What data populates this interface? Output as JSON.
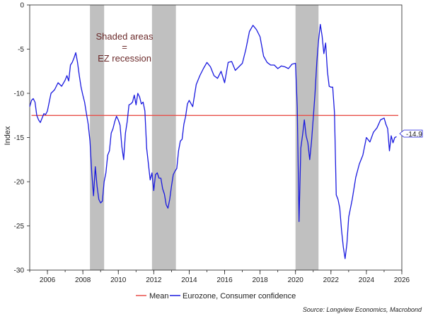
{
  "chart_data": {
    "type": "line",
    "ylabel": "Index",
    "ylim": [
      -30,
      0
    ],
    "yticks": [
      0,
      -5,
      -10,
      -15,
      -20,
      -25,
      -30
    ],
    "xlim": [
      2005.0,
      2026.0
    ],
    "xticks": [
      2006,
      2008,
      2010,
      2012,
      2014,
      2016,
      2018,
      2020,
      2022,
      2024,
      2026
    ],
    "grid": false,
    "legend_position": "bottom",
    "annotation_lines": [
      "Shaded areas",
      "=",
      "EZ recession"
    ],
    "recessions": [
      [
        2008.4,
        2009.2
      ],
      [
        2011.9,
        2013.25
      ],
      [
        2020.0,
        2021.3
      ]
    ],
    "last_value_label": "-14.9",
    "source": "Source: Longview Economics, Macrobond",
    "series": [
      {
        "name": "Mean",
        "color": "#e8504a",
        "x": [
          2005.1,
          2025.8
        ],
        "values": [
          -12.5,
          -12.5
        ]
      },
      {
        "name": "Eurozone, Consumer confidence",
        "color": "#1a1adf",
        "x": [
          2005.0,
          2005.1,
          2005.2,
          2005.3,
          2005.4,
          2005.5,
          2005.6,
          2005.7,
          2005.8,
          2005.9,
          2006.0,
          2006.2,
          2006.4,
          2006.6,
          2006.8,
          2007.0,
          2007.1,
          2007.2,
          2007.3,
          2007.4,
          2007.5,
          2007.6,
          2007.7,
          2007.8,
          2007.9,
          2008.0,
          2008.1,
          2008.2,
          2008.3,
          2008.4,
          2008.5,
          2008.6,
          2008.7,
          2008.8,
          2008.9,
          2009.0,
          2009.1,
          2009.2,
          2009.3,
          2009.4,
          2009.5,
          2009.6,
          2009.7,
          2009.8,
          2009.9,
          2010.0,
          2010.1,
          2010.2,
          2010.3,
          2010.4,
          2010.5,
          2010.6,
          2010.7,
          2010.8,
          2010.9,
          2011.0,
          2011.1,
          2011.2,
          2011.3,
          2011.4,
          2011.5,
          2011.6,
          2011.7,
          2011.8,
          2011.9,
          2012.0,
          2012.1,
          2012.2,
          2012.3,
          2012.4,
          2012.5,
          2012.6,
          2012.7,
          2012.8,
          2012.9,
          2013.0,
          2013.1,
          2013.2,
          2013.3,
          2013.4,
          2013.5,
          2013.6,
          2013.7,
          2013.8,
          2013.9,
          2014.0,
          2014.2,
          2014.4,
          2014.6,
          2014.8,
          2015.0,
          2015.2,
          2015.4,
          2015.6,
          2015.8,
          2016.0,
          2016.2,
          2016.4,
          2016.6,
          2016.8,
          2017.0,
          2017.2,
          2017.4,
          2017.6,
          2017.8,
          2018.0,
          2018.2,
          2018.4,
          2018.6,
          2018.8,
          2019.0,
          2019.2,
          2019.4,
          2019.6,
          2019.8,
          2020.0,
          2020.1,
          2020.2,
          2020.3,
          2020.4,
          2020.5,
          2020.6,
          2020.7,
          2020.8,
          2020.9,
          2021.0,
          2021.1,
          2021.2,
          2021.3,
          2021.4,
          2021.5,
          2021.6,
          2021.7,
          2021.8,
          2021.9,
          2022.0,
          2022.1,
          2022.2,
          2022.3,
          2022.4,
          2022.5,
          2022.6,
          2022.7,
          2022.8,
          2022.9,
          2023.0,
          2023.2,
          2023.4,
          2023.6,
          2023.8,
          2024.0,
          2024.2,
          2024.4,
          2024.6,
          2024.8,
          2025.0,
          2025.1,
          2025.2,
          2025.3,
          2025.4,
          2025.5,
          2025.6,
          2025.7
        ],
        "values": [
          -11.5,
          -10.8,
          -10.6,
          -11.0,
          -12.5,
          -13.0,
          -13.3,
          -12.8,
          -12.3,
          -12.4,
          -12.0,
          -10.0,
          -9.6,
          -8.8,
          -9.2,
          -8.5,
          -8.0,
          -8.6,
          -6.8,
          -6.5,
          -6.0,
          -5.4,
          -6.5,
          -8.0,
          -9.3,
          -10.2,
          -11.0,
          -12.3,
          -13.5,
          -15.4,
          -19.0,
          -21.6,
          -18.3,
          -20.5,
          -22.0,
          -22.4,
          -22.2,
          -20.0,
          -19.0,
          -17.0,
          -16.5,
          -14.5,
          -14.0,
          -13.2,
          -12.6,
          -13.0,
          -13.6,
          -16.0,
          -17.5,
          -14.5,
          -13.2,
          -11.3,
          -11.2,
          -11.0,
          -10.2,
          -11.3,
          -10.0,
          -10.4,
          -11.2,
          -11.0,
          -12.0,
          -16.2,
          -18.0,
          -19.8,
          -19.0,
          -21.0,
          -19.2,
          -19.0,
          -19.6,
          -19.6,
          -20.8,
          -21.4,
          -22.6,
          -23.0,
          -22.0,
          -20.5,
          -19.2,
          -18.8,
          -18.5,
          -16.5,
          -15.4,
          -15.2,
          -13.5,
          -12.6,
          -11.2,
          -10.8,
          -11.5,
          -9.0,
          -8.0,
          -7.2,
          -6.5,
          -7.0,
          -8.0,
          -8.3,
          -7.5,
          -8.8,
          -6.5,
          -6.4,
          -7.4,
          -7.0,
          -6.6,
          -5.0,
          -3.0,
          -2.3,
          -2.8,
          -3.6,
          -5.8,
          -6.5,
          -6.8,
          -6.8,
          -7.2,
          -6.9,
          -7.0,
          -7.2,
          -6.7,
          -6.6,
          -11.6,
          -24.5,
          -16.2,
          -14.7,
          -13.0,
          -14.8,
          -15.6,
          -17.5,
          -15.5,
          -12.8,
          -10.0,
          -6.5,
          -4.0,
          -2.2,
          -3.5,
          -5.5,
          -4.3,
          -7.5,
          -9.2,
          -9.3,
          -9.3,
          -12.2,
          -21.5,
          -22.0,
          -23.0,
          -25.5,
          -27.4,
          -28.7,
          -27.0,
          -24.0,
          -22.0,
          -19.5,
          -18.0,
          -17.0,
          -15.0,
          -15.5,
          -14.4,
          -13.9,
          -13.0,
          -12.8,
          -13.5,
          -14.0,
          -16.5,
          -14.8,
          -15.6,
          -15.0,
          -14.9
        ]
      }
    ]
  }
}
